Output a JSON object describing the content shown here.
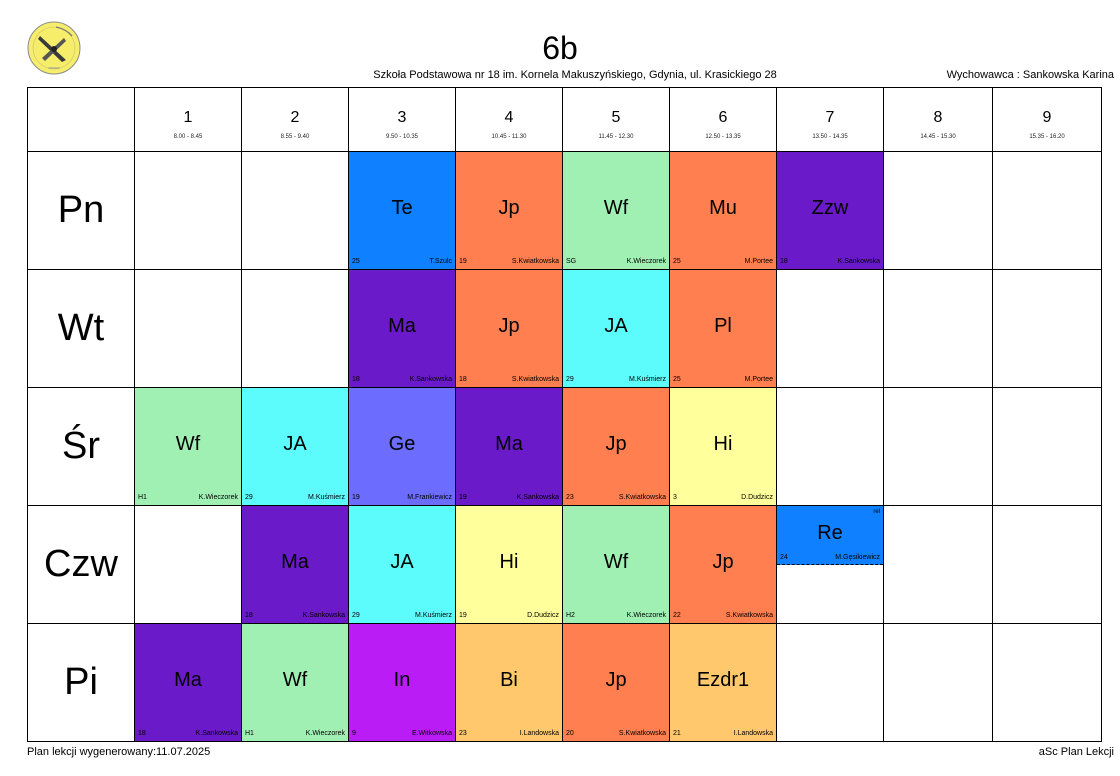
{
  "header": {
    "class_name": "6b",
    "school_name": "Szkoła Podstawowa nr 18 im. Kornela Makuszyńskiego, Gdynia, ul. Krasickiego 28",
    "tutor": "Wychowawca : Sankowska Karina"
  },
  "periods": [
    {
      "num": "1",
      "time": "8.00 - 8.45"
    },
    {
      "num": "2",
      "time": "8.55 - 9.40"
    },
    {
      "num": "3",
      "time": "9.50 - 10.35"
    },
    {
      "num": "4",
      "time": "10.45 - 11.30"
    },
    {
      "num": "5",
      "time": "11.45 - 12.30"
    },
    {
      "num": "6",
      "time": "12.50 - 13.35"
    },
    {
      "num": "7",
      "time": "13.50 - 14.35"
    },
    {
      "num": "8",
      "time": "14.45 - 15.30"
    },
    {
      "num": "9",
      "time": "15.35 - 16.20"
    }
  ],
  "days": [
    {
      "label": "Pn",
      "lessons": [
        null,
        null,
        {
          "subject": "Te",
          "room": "25",
          "teacher": "T.Szulc",
          "color": "#0f80ff"
        },
        {
          "subject": "Jp",
          "room": "19",
          "teacher": "S.Kwiatkowska",
          "color": "#ff7f50"
        },
        {
          "subject": "Wf",
          "room": "SG",
          "teacher": "K.Wieczorek",
          "color": "#a0f0b4"
        },
        {
          "subject": "Mu",
          "room": "25",
          "teacher": "M.Portee",
          "color": "#ff7f50"
        },
        {
          "subject": "Zzw",
          "room": "18",
          "teacher": "K.Sankowska",
          "color": "#6a1ac8"
        },
        null,
        null
      ]
    },
    {
      "label": "Wt",
      "lessons": [
        null,
        null,
        {
          "subject": "Ma",
          "room": "18",
          "teacher": "K.Sankowska",
          "color": "#6a1ac8"
        },
        {
          "subject": "Jp",
          "room": "18",
          "teacher": "S.Kwiatkowska",
          "color": "#ff7f50"
        },
        {
          "subject": "JA",
          "room": "29",
          "teacher": "M.Kuśmierz",
          "color": "#5cfcfc"
        },
        {
          "subject": "Pl",
          "room": "25",
          "teacher": "M.Portee",
          "color": "#ff7f50"
        },
        null,
        null,
        null
      ]
    },
    {
      "label": "Śr",
      "lessons": [
        {
          "subject": "Wf",
          "room": "H1",
          "teacher": "K.Wieczorek",
          "color": "#a0f0b4"
        },
        {
          "subject": "JA",
          "room": "29",
          "teacher": "M.Kuśmierz",
          "color": "#5cfcfc"
        },
        {
          "subject": "Ge",
          "room": "19",
          "teacher": "M.Frankiewicz",
          "color": "#6c6cff"
        },
        {
          "subject": "Ma",
          "room": "19",
          "teacher": "K.Sankowska",
          "color": "#6a1ac8"
        },
        {
          "subject": "Jp",
          "room": "23",
          "teacher": "S.Kwiatkowska",
          "color": "#ff7f50"
        },
        {
          "subject": "Hi",
          "room": "3",
          "teacher": "D.Dudzicz",
          "color": "#ffff9c"
        },
        null,
        null,
        null
      ]
    },
    {
      "label": "Czw",
      "lessons": [
        null,
        {
          "subject": "Ma",
          "room": "18",
          "teacher": "K.Sankowska",
          "color": "#6a1ac8"
        },
        {
          "subject": "JA",
          "room": "29",
          "teacher": "M.Kuśmierz",
          "color": "#5cfcfc"
        },
        {
          "subject": "Hi",
          "room": "19",
          "teacher": "D.Dudzicz",
          "color": "#ffff9c"
        },
        {
          "subject": "Wf",
          "room": "H2",
          "teacher": "K.Wieczorek",
          "color": "#a0f0b4"
        },
        {
          "subject": "Jp",
          "room": "22",
          "teacher": "S.Kwiatkowska",
          "color": "#ff7f50"
        },
        {
          "subject": "Re",
          "room": "24",
          "teacher": "M.Gęsikiewicz",
          "color": "#0f80ff",
          "group": "rel",
          "half": true
        },
        null,
        null
      ]
    },
    {
      "label": "Pi",
      "lessons": [
        {
          "subject": "Ma",
          "room": "18",
          "teacher": "K.Sankowska",
          "color": "#6a1ac8"
        },
        {
          "subject": "Wf",
          "room": "H1",
          "teacher": "K.Wieczorek",
          "color": "#a0f0b4"
        },
        {
          "subject": "In",
          "room": "9",
          "teacher": "E.Witkowska",
          "color": "#b91cf5"
        },
        {
          "subject": "Bi",
          "room": "23",
          "teacher": "I.Landowska",
          "color": "#ffc86c"
        },
        {
          "subject": "Jp",
          "room": "20",
          "teacher": "S.Kwiatkowska",
          "color": "#ff7f50"
        },
        {
          "subject": "Ezdr1",
          "room": "21",
          "teacher": "I.Landowska",
          "color": "#ffc86c"
        },
        null,
        null,
        null
      ]
    }
  ],
  "footer": {
    "generated": "Plan lekcji wygenerowany:11.07.2025",
    "app": "aSc Plan Lekcji"
  }
}
